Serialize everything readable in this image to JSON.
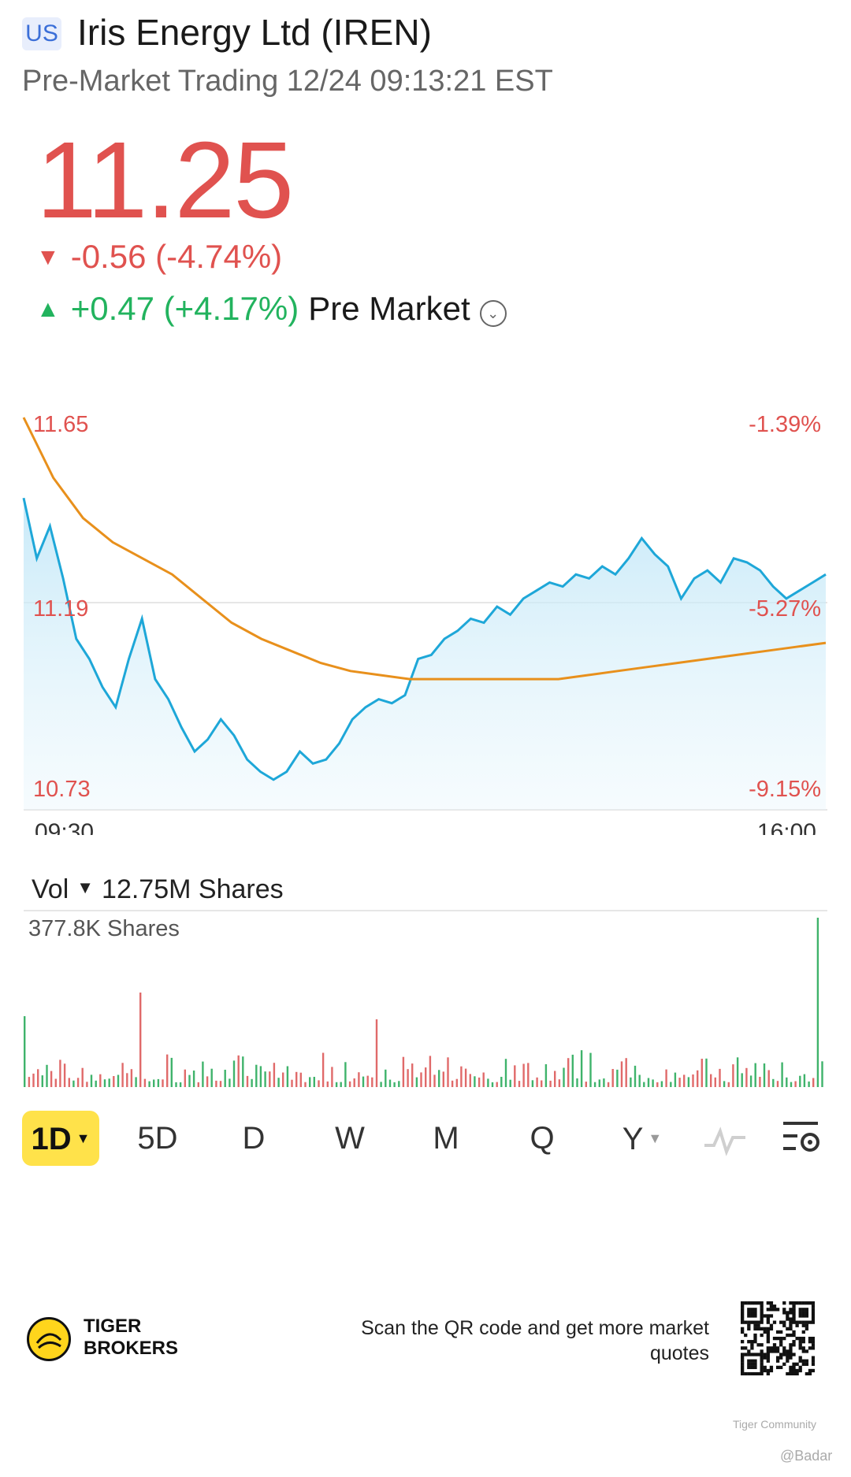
{
  "header": {
    "market_badge": "US",
    "title": "Iris Energy Ltd (IREN)",
    "subtitle": "Pre-Market Trading 12/24 09:13:21 EST"
  },
  "quote": {
    "price": "11.25",
    "change": "-0.56 (-4.74%)",
    "pre_change": "+0.47 (+4.17%)",
    "pre_label": "Pre Market",
    "down_color": "#e0524f",
    "up_color": "#22b35e"
  },
  "chart": {
    "y_top_label": "11.65",
    "y_mid_label": "11.19",
    "y_bottom_label": "10.73",
    "pct_top_label": "-1.39%",
    "pct_mid_label": "-5.27%",
    "pct_bottom_label": "-9.15%",
    "time_start": "09:30",
    "time_end": "16:00",
    "line_color": "#1ea7d8",
    "avg_color": "#e8901c"
  },
  "chart_data": {
    "type": "line",
    "x_range": [
      "09:30",
      "16:00"
    ],
    "ylim": [
      10.73,
      11.65
    ],
    "series": [
      {
        "role": "price",
        "values": [
          11.45,
          11.3,
          11.38,
          11.25,
          11.1,
          11.05,
          10.98,
          10.93,
          11.05,
          11.15,
          11.0,
          10.95,
          10.88,
          10.82,
          10.85,
          10.9,
          10.86,
          10.8,
          10.77,
          10.75,
          10.77,
          10.82,
          10.79,
          10.8,
          10.84,
          10.9,
          10.93,
          10.95,
          10.94,
          10.96,
          11.05,
          11.06,
          11.1,
          11.12,
          11.15,
          11.14,
          11.18,
          11.16,
          11.2,
          11.22,
          11.24,
          11.23,
          11.26,
          11.25,
          11.28,
          11.26,
          11.3,
          11.35,
          11.31,
          11.28,
          11.2,
          11.25,
          11.27,
          11.24,
          11.3,
          11.29,
          11.27,
          11.23,
          11.2,
          11.22,
          11.24,
          11.26
        ]
      },
      {
        "role": "average",
        "values": [
          11.65,
          11.5,
          11.4,
          11.34,
          11.3,
          11.26,
          11.2,
          11.14,
          11.1,
          11.07,
          11.04,
          11.02,
          11.01,
          11.0,
          11.0,
          11.0,
          11.0,
          11.0,
          11.0,
          11.01,
          11.02,
          11.03,
          11.04,
          11.05,
          11.06,
          11.07,
          11.08,
          11.09
        ]
      }
    ]
  },
  "volume": {
    "label": "Vol",
    "total": "12.75M Shares",
    "max_label": "377.8K Shares"
  },
  "periods": [
    {
      "label": "1D",
      "active": true,
      "dropdown": true
    },
    {
      "label": "5D"
    },
    {
      "label": "D"
    },
    {
      "label": "W"
    },
    {
      "label": "M"
    },
    {
      "label": "Q"
    },
    {
      "label": "Y",
      "dropdown": true
    }
  ],
  "footer": {
    "brand_line1": "TIGER",
    "brand_line2": "BROKERS",
    "qr_text": "Scan the QR code and get more market quotes",
    "community": "Tiger Community",
    "author": "@Badar"
  }
}
